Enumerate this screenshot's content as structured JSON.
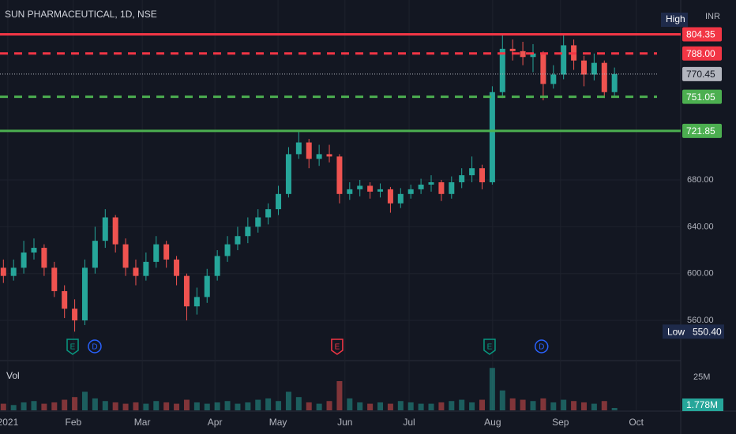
{
  "chart_data": {
    "type": "candlestick",
    "title": "SUN PHARMACEUTICAL, 1D, NSE",
    "currency": "INR",
    "x": [
      1,
      4,
      7,
      10,
      13,
      16,
      19,
      22,
      25,
      28,
      31,
      34,
      37,
      40,
      43,
      46,
      49,
      52,
      55,
      58,
      61,
      64,
      67,
      70,
      73,
      76,
      79,
      82,
      85,
      88,
      91,
      94,
      97,
      100,
      103,
      106,
      109,
      112,
      115,
      118,
      121,
      124,
      127,
      130,
      133,
      136,
      139,
      142,
      145,
      148,
      151,
      154,
      157,
      160,
      163,
      166,
      169,
      172,
      175,
      178,
      181
    ],
    "open": [
      605,
      598,
      605,
      618,
      622,
      605,
      585,
      570,
      560,
      605,
      628,
      648,
      625,
      605,
      598,
      610,
      625,
      612,
      598,
      572,
      580,
      598,
      615,
      625,
      632,
      640,
      648,
      655,
      668,
      702,
      712,
      698,
      702,
      700,
      668,
      672,
      675,
      670,
      672,
      660,
      668,
      672,
      676,
      678,
      668,
      678,
      684,
      690,
      678,
      755,
      792,
      790,
      785,
      788,
      762,
      770,
      795,
      782,
      770,
      780,
      755
    ],
    "high": [
      612,
      612,
      628,
      630,
      625,
      610,
      590,
      578,
      612,
      640,
      655,
      650,
      630,
      612,
      618,
      632,
      628,
      615,
      600,
      588,
      604,
      620,
      632,
      640,
      648,
      655,
      660,
      675,
      708,
      721.85,
      715,
      710,
      710,
      702,
      678,
      680,
      678,
      677,
      674,
      673,
      676,
      681,
      684,
      680,
      683,
      690,
      700,
      693,
      760,
      804.35,
      800,
      798,
      796,
      790,
      778,
      804,
      800,
      786,
      788,
      782,
      776
    ],
    "low": [
      592,
      594,
      600,
      612,
      598,
      580,
      562,
      550.4,
      556,
      600,
      622,
      618,
      598,
      590,
      594,
      605,
      605,
      590,
      560,
      565,
      575,
      594,
      610,
      620,
      626,
      635,
      642,
      650,
      665,
      698,
      690,
      692,
      695,
      660,
      663,
      666,
      664,
      665,
      652,
      656,
      664,
      668,
      670,
      662,
      664,
      673,
      678,
      672,
      676,
      750,
      782,
      778,
      772,
      748,
      758,
      766,
      774,
      760,
      765,
      750,
      752
    ],
    "close": [
      598,
      605,
      618,
      622,
      605,
      585,
      570,
      560,
      605,
      628,
      648,
      625,
      605,
      598,
      610,
      625,
      612,
      598,
      572,
      580,
      598,
      615,
      625,
      632,
      640,
      648,
      655,
      668,
      702,
      712,
      698,
      702,
      700,
      668,
      672,
      675,
      670,
      672,
      660,
      668,
      672,
      676,
      678,
      668,
      678,
      684,
      690,
      678,
      755,
      792,
      790,
      785,
      788,
      762,
      770,
      795,
      782,
      770,
      780,
      755,
      770.45
    ],
    "volume": [
      5,
      4,
      6,
      7,
      5,
      6,
      8,
      10,
      14,
      9,
      7,
      6,
      5,
      6,
      5,
      7,
      6,
      5,
      8,
      6,
      5,
      6,
      7,
      5,
      6,
      8,
      9,
      7,
      14,
      10,
      6,
      5,
      7,
      22,
      9,
      6,
      5,
      6,
      5,
      7,
      6,
      5,
      5,
      6,
      7,
      8,
      6,
      8,
      32,
      15,
      9,
      8,
      7,
      9,
      6,
      8,
      7,
      6,
      5,
      7,
      1.778
    ],
    "volume_label": "Vol",
    "volume_last_label": "1.778M",
    "vlim": [
      0,
      37.5
    ],
    "vticks": [
      {
        "value": 25,
        "label": "25M"
      }
    ],
    "up_color": "#26a69a",
    "down_color": "#ef5350",
    "xlim": [
      0,
      200.5
    ],
    "xticks": [
      {
        "value": 2.3,
        "label": "2021"
      },
      {
        "value": 21.6,
        "label": "Feb"
      },
      {
        "value": 41.9,
        "label": "Mar"
      },
      {
        "value": 63.3,
        "label": "Apr"
      },
      {
        "value": 81.9,
        "label": "May"
      },
      {
        "value": 101.6,
        "label": "Jun"
      },
      {
        "value": 120.5,
        "label": "Jul"
      },
      {
        "value": 145.1,
        "label": "Aug"
      },
      {
        "value": 165.1,
        "label": "Sep"
      },
      {
        "value": 187.4,
        "label": "Oct"
      }
    ],
    "ylim": [
      527,
      833.7
    ],
    "yticks": [
      {
        "value": 560,
        "label": "560.00"
      },
      {
        "value": 600,
        "label": "600.00"
      },
      {
        "value": 640,
        "label": "640.00"
      },
      {
        "value": 680,
        "label": "680.00"
      }
    ],
    "grid": true,
    "levels": [
      {
        "value": 804.35,
        "label": "804.35",
        "color": "#f23645",
        "style": "solid"
      },
      {
        "value": 788,
        "label": "788.00",
        "color": "#f23645",
        "style": "dashed"
      },
      {
        "value": 770.45,
        "label": "770.45",
        "color": "#b2b5be",
        "style": "dotted"
      },
      {
        "value": 751.05,
        "label": "751.05",
        "color": "#4caf50",
        "style": "dashed"
      },
      {
        "value": 721.85,
        "label": "721.85",
        "color": "#4caf50",
        "style": "solid"
      }
    ],
    "high_label": "High",
    "low_label": "Low",
    "low_value": {
      "value": 550.4,
      "label": "550.40"
    },
    "events": [
      {
        "x": 21.4,
        "label": "E",
        "color": "#089981"
      },
      {
        "x": 27.9,
        "label": "D",
        "color": "#2962ff"
      },
      {
        "x": 99.3,
        "label": "E",
        "color": "#f23645"
      },
      {
        "x": 144.2,
        "label": "E",
        "color": "#089981"
      },
      {
        "x": 159.5,
        "label": "D",
        "color": "#2962ff"
      }
    ]
  }
}
